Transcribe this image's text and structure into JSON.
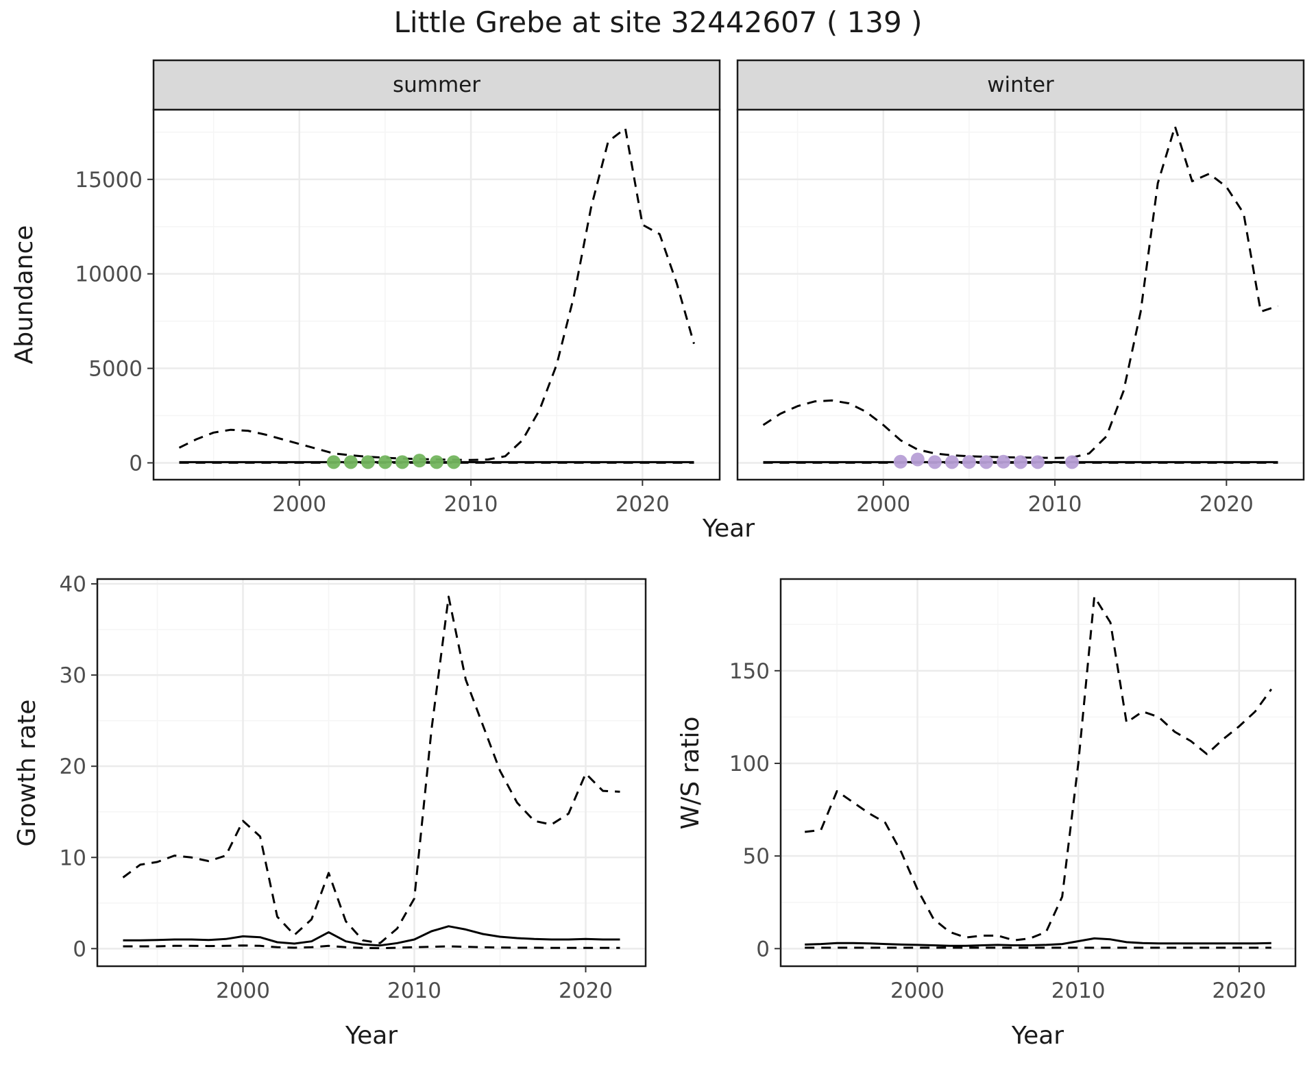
{
  "title": "Little Grebe at site 32442607 ( 139 )",
  "labels": {
    "abundance": "Abundance",
    "growth": "Growth rate",
    "ws": "W/S ratio",
    "year": "Year"
  },
  "facets": {
    "summer": "summer",
    "winter": "winter"
  },
  "style": {
    "line_color": "#000000",
    "summer_point_color": "#73b55e",
    "winter_point_color": "#b79fd6",
    "strip_fill": "#d9d9d9",
    "panel_border": "#1a1a1a",
    "grid_major": "#ebebeb",
    "grid_minor": "#f5f5f5",
    "tick_color": "#333333",
    "tick_label_color": "#4d4d4d",
    "panel_bg": "#ffffff"
  },
  "chart_data": [
    {
      "id": "abundance-summer",
      "type": "line",
      "facet": "summer",
      "title": "Little Grebe at site 32442607 ( 139 )",
      "xlabel": "Year",
      "ylabel": "Abundance",
      "x_domain": [
        1991.5,
        2024.5
      ],
      "y_domain": [
        -890,
        18690
      ],
      "x_ticks": [
        2000,
        2010,
        2020
      ],
      "y_ticks": [
        0,
        5000,
        10000,
        15000
      ],
      "x": [
        1993,
        1994,
        1995,
        1996,
        1997,
        1998,
        1999,
        2000,
        2001,
        2002,
        2003,
        2004,
        2005,
        2006,
        2007,
        2008,
        2009,
        2010,
        2011,
        2012,
        2013,
        2014,
        2015,
        2016,
        2017,
        2018,
        2019,
        2020,
        2021,
        2022,
        2023
      ],
      "series": [
        {
          "name": "upper_95ci",
          "style": "dashed",
          "y": [
            800,
            1250,
            1600,
            1750,
            1700,
            1500,
            1250,
            1000,
            750,
            500,
            400,
            320,
            270,
            230,
            200,
            180,
            160,
            150,
            180,
            350,
            1200,
            2800,
            5200,
            8800,
            13500,
            17000,
            17700,
            12600,
            12100,
            9500,
            6300
          ]
        },
        {
          "name": "estimate",
          "style": "solid",
          "y": [
            40,
            40,
            40,
            40,
            40,
            40,
            40,
            40,
            40,
            40,
            40,
            40,
            40,
            40,
            40,
            40,
            40,
            40,
            40,
            40,
            40,
            40,
            40,
            40,
            40,
            40,
            40,
            40,
            40,
            40,
            40
          ]
        },
        {
          "name": "lower_95ci",
          "style": "dashed",
          "y": [
            5,
            5,
            5,
            5,
            5,
            5,
            5,
            5,
            5,
            5,
            5,
            5,
            5,
            5,
            5,
            5,
            5,
            5,
            5,
            5,
            5,
            5,
            5,
            5,
            5,
            5,
            5,
            5,
            5,
            5,
            5
          ]
        }
      ],
      "points": {
        "name": "observed-counts-summer",
        "color_key": "summer_point_color",
        "x": [
          2002,
          2003,
          2004,
          2005,
          2006,
          2007,
          2008,
          2009
        ],
        "y": [
          40,
          40,
          40,
          40,
          40,
          120,
          40,
          40
        ]
      }
    },
    {
      "id": "abundance-winter",
      "type": "line",
      "facet": "winter",
      "xlabel": "Year",
      "ylabel": "Abundance",
      "x_domain": [
        1991.5,
        2024.5
      ],
      "y_domain": [
        -890,
        18690
      ],
      "x_ticks": [
        2000,
        2010,
        2020
      ],
      "y_ticks": [
        0,
        5000,
        10000,
        15000
      ],
      "x": [
        1993,
        1994,
        1995,
        1996,
        1997,
        1998,
        1999,
        2000,
        2001,
        2002,
        2003,
        2004,
        2005,
        2006,
        2007,
        2008,
        2009,
        2010,
        2011,
        2012,
        2013,
        2014,
        2015,
        2016,
        2017,
        2018,
        2019,
        2020,
        2021,
        2022,
        2023
      ],
      "series": [
        {
          "name": "upper_95ci",
          "style": "dashed",
          "y": [
            2000,
            2600,
            3000,
            3250,
            3300,
            3150,
            2700,
            2000,
            1200,
            700,
            500,
            400,
            350,
            320,
            300,
            280,
            270,
            260,
            280,
            500,
            1400,
            3800,
            8000,
            14800,
            17800,
            14900,
            15300,
            14600,
            13200,
            8000,
            8300
          ]
        },
        {
          "name": "estimate",
          "style": "solid",
          "y": [
            40,
            40,
            40,
            40,
            40,
            40,
            40,
            40,
            40,
            40,
            40,
            40,
            40,
            40,
            40,
            40,
            40,
            40,
            40,
            40,
            40,
            40,
            40,
            40,
            40,
            40,
            40,
            40,
            40,
            40,
            40
          ]
        },
        {
          "name": "lower_95ci",
          "style": "dashed",
          "y": [
            5,
            5,
            5,
            5,
            5,
            5,
            5,
            5,
            5,
            5,
            5,
            5,
            5,
            5,
            5,
            5,
            5,
            5,
            5,
            5,
            5,
            5,
            5,
            5,
            5,
            5,
            5,
            5,
            5,
            5,
            5
          ]
        }
      ],
      "points": {
        "name": "observed-counts-winter",
        "color_key": "winter_point_color",
        "x": [
          2001,
          2002,
          2003,
          2004,
          2005,
          2006,
          2007,
          2008,
          2009,
          2011
        ],
        "y": [
          60,
          180,
          40,
          40,
          50,
          40,
          60,
          40,
          40,
          40
        ]
      }
    },
    {
      "id": "growth-rate",
      "type": "line",
      "facet": null,
      "xlabel": "Year",
      "ylabel": "Growth rate",
      "x_domain": [
        1991.5,
        2023.5
      ],
      "y_domain": [
        -1.93,
        40.53
      ],
      "x_ticks": [
        2000,
        2010,
        2020
      ],
      "y_ticks": [
        0,
        10,
        20,
        30,
        40
      ],
      "x": [
        1993,
        1994,
        1995,
        1996,
        1997,
        1998,
        1999,
        2000,
        2001,
        2002,
        2003,
        2004,
        2005,
        2006,
        2007,
        2008,
        2009,
        2010,
        2011,
        2012,
        2013,
        2014,
        2015,
        2016,
        2017,
        2018,
        2019,
        2020,
        2021,
        2022
      ],
      "series": [
        {
          "name": "upper_95ci",
          "style": "dashed",
          "y": [
            7.8,
            9.2,
            9.5,
            10.2,
            10.0,
            9.6,
            10.2,
            14.0,
            12.3,
            3.5,
            1.5,
            3.2,
            8.3,
            3.0,
            0.9,
            0.6,
            2.2,
            5.5,
            24.0,
            38.6,
            29.5,
            24.5,
            19.5,
            16.0,
            14.0,
            13.6,
            14.8,
            19.2,
            17.3,
            17.2
          ]
        },
        {
          "name": "estimate",
          "style": "solid",
          "y": [
            0.9,
            0.9,
            0.95,
            1.0,
            1.0,
            0.95,
            1.05,
            1.35,
            1.25,
            0.7,
            0.55,
            0.8,
            1.8,
            0.8,
            0.45,
            0.35,
            0.6,
            1.0,
            1.9,
            2.45,
            2.1,
            1.6,
            1.3,
            1.15,
            1.05,
            1.0,
            1.0,
            1.05,
            1.0,
            1.0
          ]
        },
        {
          "name": "lower_95ci",
          "style": "dashed",
          "y": [
            0.25,
            0.25,
            0.25,
            0.3,
            0.3,
            0.28,
            0.3,
            0.35,
            0.3,
            0.15,
            0.1,
            0.15,
            0.3,
            0.15,
            0.08,
            0.05,
            0.1,
            0.15,
            0.2,
            0.25,
            0.2,
            0.15,
            0.12,
            0.1,
            0.1,
            0.08,
            0.08,
            0.08,
            0.08,
            0.08
          ]
        }
      ],
      "points": null
    },
    {
      "id": "ws-ratio",
      "type": "line",
      "facet": null,
      "xlabel": "Year",
      "ylabel": "W/S ratio",
      "x_domain": [
        1991.5,
        2023.5
      ],
      "y_domain": [
        -9.5,
        199.5
      ],
      "x_ticks": [
        2000,
        2010,
        2020
      ],
      "y_ticks": [
        0,
        50,
        100,
        150
      ],
      "x": [
        1993,
        1994,
        1995,
        1996,
        1997,
        1998,
        1999,
        2000,
        2001,
        2002,
        2003,
        2004,
        2005,
        2006,
        2007,
        2008,
        2009,
        2010,
        2011,
        2012,
        2013,
        2014,
        2015,
        2016,
        2017,
        2018,
        2019,
        2020,
        2021,
        2022
      ],
      "series": [
        {
          "name": "upper_95ci",
          "style": "dashed",
          "y": [
            63,
            64,
            85,
            79,
            73,
            68,
            52,
            32,
            16,
            9,
            6,
            7,
            7,
            4.5,
            5.5,
            9,
            28,
            100,
            190,
            176,
            122,
            128,
            125,
            117,
            112,
            105,
            113,
            120,
            128,
            140
          ]
        },
        {
          "name": "estimate",
          "style": "solid",
          "y": [
            2.2,
            2.5,
            3.0,
            3.0,
            2.8,
            2.5,
            2.2,
            2.0,
            1.8,
            1.5,
            1.5,
            1.8,
            2.0,
            1.8,
            1.8,
            2.0,
            2.5,
            4.0,
            5.5,
            5.0,
            3.5,
            3.0,
            2.8,
            2.8,
            2.8,
            2.8,
            2.8,
            2.8,
            2.8,
            3.0
          ]
        },
        {
          "name": "lower_95ci",
          "style": "dashed",
          "y": [
            0.5,
            0.5,
            0.5,
            0.5,
            0.5,
            0.5,
            0.5,
            0.5,
            0.5,
            0.5,
            0.5,
            0.5,
            0.5,
            0.5,
            0.5,
            0.5,
            0.5,
            0.5,
            0.5,
            0.5,
            0.5,
            0.5,
            0.5,
            0.5,
            0.5,
            0.5,
            0.5,
            0.5,
            0.5,
            0.5
          ]
        }
      ],
      "points": null
    }
  ]
}
